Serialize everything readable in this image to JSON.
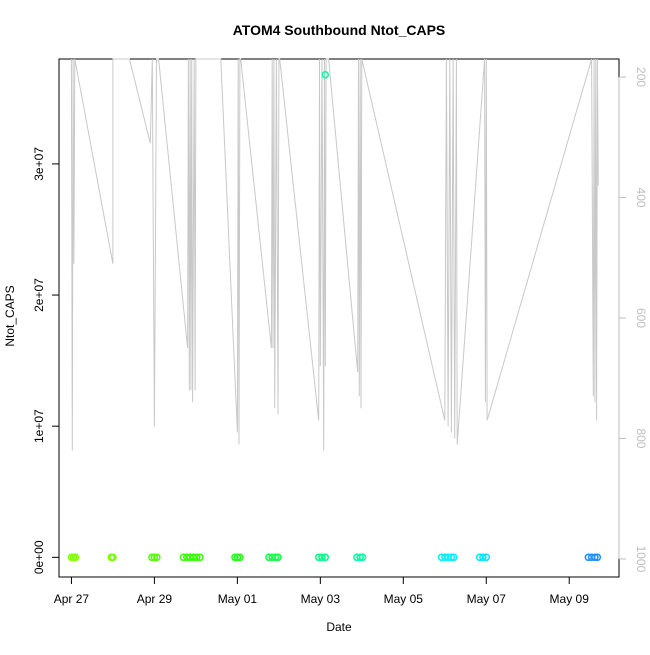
{
  "chart_data": {
    "type": "scatter",
    "title": "ATOM4 Southbound Ntot_CAPS",
    "xlabel": "Date",
    "ylabel": "Ntot_CAPS",
    "x_tick_labels": [
      "Apr 27",
      "Apr 29",
      "May 01",
      "May 03",
      "May 05",
      "May 07",
      "May 09"
    ],
    "x_ticks": [
      "2016-04-27",
      "2016-04-29",
      "2016-05-01",
      "2016-05-03",
      "2016-05-05",
      "2016-05-07",
      "2016-05-09"
    ],
    "xlim": [
      "2016-04-26.7",
      "2016-05-10.2"
    ],
    "y_tick_labels": [
      "0e+00",
      "1e+07",
      "2e+07",
      "3e+07"
    ],
    "y_ticks": [
      0,
      10000000,
      20000000,
      30000000
    ],
    "ylim": [
      -1500000,
      38000000
    ],
    "right_axis_tick_labels": [
      "200",
      "400",
      "600",
      "800",
      "1000"
    ],
    "right_axis_ticks": [
      200,
      400,
      600,
      800,
      1000
    ],
    "right_axis_range": [
      1030,
      170
    ],
    "right_axis_color": "#bebebe",
    "line_color": "#c8c8c8",
    "series": [
      {
        "type": "points",
        "points": [
          {
            "x": "2016-04-27.00",
            "y": 0,
            "color": "#80ff00"
          },
          {
            "x": "2016-04-27.05",
            "y": 0,
            "color": "#80ff00"
          },
          {
            "x": "2016-04-27.10",
            "y": 0,
            "color": "#80ff00"
          },
          {
            "x": "2016-04-27.96",
            "y": 0,
            "color": "#70ff00"
          },
          {
            "x": "2016-04-28.00",
            "y": 0,
            "color": "#70ff00"
          },
          {
            "x": "2016-04-28.94",
            "y": 0,
            "color": "#4cff00"
          },
          {
            "x": "2016-04-29.00",
            "y": 0,
            "color": "#4cff00"
          },
          {
            "x": "2016-04-29.06",
            "y": 0,
            "color": "#4cff00"
          },
          {
            "x": "2016-04-29.70",
            "y": 0,
            "color": "#33ff00"
          },
          {
            "x": "2016-04-29.78",
            "y": 0,
            "color": "#33ff00"
          },
          {
            "x": "2016-04-29.86",
            "y": 0,
            "color": "#33ff00"
          },
          {
            "x": "2016-04-29.94",
            "y": 0,
            "color": "#33ff00"
          },
          {
            "x": "2016-04-30.02",
            "y": 0,
            "color": "#33ff00"
          },
          {
            "x": "2016-04-30.10",
            "y": 0,
            "color": "#33ff00"
          },
          {
            "x": "2016-04-30.94",
            "y": 0,
            "color": "#1aff10"
          },
          {
            "x": "2016-05-01.00",
            "y": 0,
            "color": "#1aff10"
          },
          {
            "x": "2016-05-01.06",
            "y": 0,
            "color": "#1aff10"
          },
          {
            "x": "2016-05-01.76",
            "y": 0,
            "color": "#10ff40"
          },
          {
            "x": "2016-05-01.84",
            "y": 0,
            "color": "#10ff40"
          },
          {
            "x": "2016-05-01.92",
            "y": 0,
            "color": "#10ff40"
          },
          {
            "x": "2016-05-01.98",
            "y": 0,
            "color": "#10ff40"
          },
          {
            "x": "2016-05-02.96",
            "y": 0,
            "color": "#00ff80"
          },
          {
            "x": "2016-05-03.04",
            "y": 0,
            "color": "#00ff80"
          },
          {
            "x": "2016-05-03.12",
            "y": 0,
            "color": "#00ff80"
          },
          {
            "x": "2016-05-03.88",
            "y": 0,
            "color": "#00ffa0"
          },
          {
            "x": "2016-05-03.96",
            "y": 0,
            "color": "#00ffa0"
          },
          {
            "x": "2016-05-04.02",
            "y": 0,
            "color": "#00ffa0"
          },
          {
            "x": "2016-05-05.92",
            "y": 0,
            "color": "#00f0ff"
          },
          {
            "x": "2016-05-06.00",
            "y": 0,
            "color": "#00f0ff"
          },
          {
            "x": "2016-05-06.08",
            "y": 0,
            "color": "#00f0ff"
          },
          {
            "x": "2016-05-06.16",
            "y": 0,
            "color": "#00f0ff"
          },
          {
            "x": "2016-05-06.22",
            "y": 0,
            "color": "#00f0ff"
          },
          {
            "x": "2016-05-06.84",
            "y": 0,
            "color": "#00e5ff"
          },
          {
            "x": "2016-05-06.92",
            "y": 0,
            "color": "#00e5ff"
          },
          {
            "x": "2016-05-07.00",
            "y": 0,
            "color": "#00e5ff"
          },
          {
            "x": "2016-05-09.46",
            "y": 0,
            "color": "#1e90ff"
          },
          {
            "x": "2016-05-09.54",
            "y": 0,
            "color": "#1e90ff"
          },
          {
            "x": "2016-05-09.62",
            "y": 0,
            "color": "#1e90ff"
          },
          {
            "x": "2016-05-09.68",
            "y": 0,
            "color": "#1e90ff"
          },
          {
            "x": "2016-05-03.12",
            "y": 36800000,
            "color": "#00ffa0"
          }
        ]
      },
      {
        "type": "line",
        "name": "",
        "axis": "right",
        "x": [
          "2016-04-27.00",
          "2016-04-27.02",
          "2016-04-27.04",
          "2016-04-27.06",
          "2016-04-27.08",
          "2016-04-28.00",
          "2016-04-28.00",
          "2016-04-28.40",
          "2016-04-28.90",
          "2016-04-28.95",
          "2016-04-29.00",
          "2016-04-29.05",
          "2016-04-29.10",
          "2016-04-29.80",
          "2016-04-29.82",
          "2016-04-29.84",
          "2016-04-29.86",
          "2016-04-29.88",
          "2016-04-29.90",
          "2016-04-29.92",
          "2016-04-29.96",
          "2016-04-29.98",
          "2016-04-30.00",
          "2016-04-30.02",
          "2016-04-30.06",
          "2016-04-30.10",
          "2016-04-30.30",
          "2016-04-30.60",
          "2016-05-01.00",
          "2016-05-01.02",
          "2016-05-01.04",
          "2016-05-01.06",
          "2016-05-01.08",
          "2016-05-01.82",
          "2016-05-01.84",
          "2016-05-01.86",
          "2016-05-01.88",
          "2016-05-01.90",
          "2016-05-01.94",
          "2016-05-01.98",
          "2016-05-02.00",
          "2016-05-02.02",
          "2016-05-02.96",
          "2016-05-02.98",
          "2016-05-03.00",
          "2016-05-03.04",
          "2016-05-03.08",
          "2016-05-03.10",
          "2016-05-03.12",
          "2016-05-03.14",
          "2016-05-03.16",
          "2016-05-03.20",
          "2016-05-03.90",
          "2016-05-03.92",
          "2016-05-03.94",
          "2016-05-03.96",
          "2016-05-03.98",
          "2016-05-04.00",
          "2016-05-06.00",
          "2016-05-06.04",
          "2016-05-06.08",
          "2016-05-06.12",
          "2016-05-06.16",
          "2016-05-06.20",
          "2016-05-06.24",
          "2016-05-06.28",
          "2016-05-06.30",
          "2016-05-06.96",
          "2016-05-06.98",
          "2016-05-07.00",
          "2016-05-07.02",
          "2016-05-09.54",
          "2016-05-09.58",
          "2016-05-09.60",
          "2016-05-09.62",
          "2016-05-09.64",
          "2016-05-09.66",
          "2016-05-09.68",
          "2016-05-09.70"
        ],
        "y": [
          170,
          820,
          170,
          510,
          170,
          510,
          170,
          170,
          310,
          170,
          780,
          170,
          170,
          650,
          170,
          720,
          170,
          720,
          170,
          740,
          170,
          720,
          170,
          170,
          170,
          170,
          170,
          170,
          790,
          170,
          810,
          170,
          170,
          650,
          170,
          650,
          170,
          750,
          170,
          760,
          170,
          170,
          770,
          170,
          680,
          170,
          820,
          170,
          680,
          170,
          170,
          170,
          690,
          170,
          730,
          170,
          750,
          170,
          770,
          170,
          780,
          170,
          790,
          170,
          800,
          170,
          810,
          170,
          740,
          170,
          770,
          170,
          730,
          170,
          740,
          170,
          770,
          170,
          380
        ]
      }
    ]
  }
}
